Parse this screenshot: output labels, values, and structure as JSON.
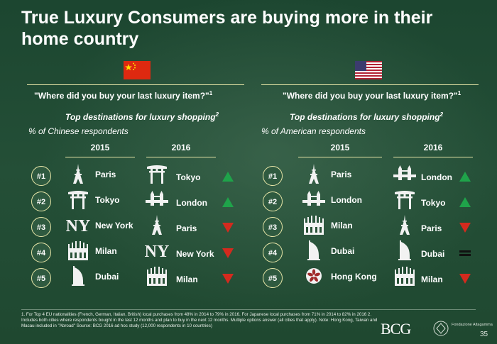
{
  "title": "True Luxury Consumers are buying more in their home country",
  "left": {
    "flag": "china-flag",
    "question": "\"Where did you buy your last luxury item?\"",
    "question_sup": "1",
    "subtitle": "Top destinations for luxury shopping",
    "subtitle_sup": "2",
    "respondents": "% of Chinese respondents",
    "year_a": "2015",
    "year_b": "2016",
    "ranks": [
      "#1",
      "#2",
      "#3",
      "#4",
      "#5"
    ],
    "col_2015": [
      {
        "city": "Paris",
        "icon": "eiffel-tower-icon"
      },
      {
        "city": "Tokyo",
        "icon": "torii-gate-icon"
      },
      {
        "city": "New York",
        "icon": "new-york-yankees-icon"
      },
      {
        "city": "Milan",
        "icon": "milan-cathedral-icon"
      },
      {
        "city": "Dubai",
        "icon": "burj-al-arab-icon"
      }
    ],
    "col_2016": [
      {
        "city": "Tokyo",
        "icon": "torii-gate-icon",
        "trend": "up"
      },
      {
        "city": "London",
        "icon": "tower-bridge-icon",
        "trend": "up"
      },
      {
        "city": "Paris",
        "icon": "eiffel-tower-icon",
        "trend": "down"
      },
      {
        "city": "New York",
        "icon": "new-york-yankees-icon",
        "trend": "down"
      },
      {
        "city": "Milan",
        "icon": "milan-cathedral-icon",
        "trend": "down"
      }
    ]
  },
  "right": {
    "flag": "usa-flag",
    "question": "\"Where did you buy your last luxury item?\"",
    "question_sup": "1",
    "subtitle": "Top destinations for luxury shopping",
    "subtitle_sup": "2",
    "respondents": "% of American respondents",
    "year_a": "2015",
    "year_b": "2016",
    "ranks": [
      "#1",
      "#2",
      "#3",
      "#4",
      "#5"
    ],
    "col_2015": [
      {
        "city": "Paris",
        "icon": "eiffel-tower-icon"
      },
      {
        "city": "London",
        "icon": "tower-bridge-icon"
      },
      {
        "city": "Milan",
        "icon": "milan-cathedral-icon"
      },
      {
        "city": "Dubai",
        "icon": "burj-al-arab-icon"
      },
      {
        "city": "Hong Kong",
        "icon": "hong-kong-flower-icon"
      }
    ],
    "col_2016": [
      {
        "city": "London",
        "icon": "tower-bridge-icon",
        "trend": "up"
      },
      {
        "city": "Tokyo",
        "icon": "torii-gate-icon",
        "trend": "up"
      },
      {
        "city": "Paris",
        "icon": "eiffel-tower-icon",
        "trend": "down"
      },
      {
        "city": "Dubai",
        "icon": "burj-al-arab-icon",
        "trend": "equal"
      },
      {
        "city": "Milan",
        "icon": "milan-cathedral-icon",
        "trend": "down"
      }
    ]
  },
  "colors": {
    "up": "#1fa34a",
    "down": "#d42a1e",
    "equal": "#111111",
    "accent_line": "#e8e6a8"
  },
  "footnote": "1. For Top 4 EU nationalities (French, German, Italian, British) local purchases from 48% in 2014 to 79% in 2016. For Japanese local purchases from 71% in 2014 to 82% in 2016     2. Includes both cities where respondents bought in the last 12 months and plan to buy in the next 12 months. Multiple options answer (all cities that apply). Note: Hong Kong, Taiwan and Macau included in \"Abroad\" Source: BCG 2016 ad hoc study (12,000 respondents in 10 countries)",
  "logo_bcg": "BCG",
  "logo_luxury": "Fondazione Altagamma",
  "page_number": "35"
}
